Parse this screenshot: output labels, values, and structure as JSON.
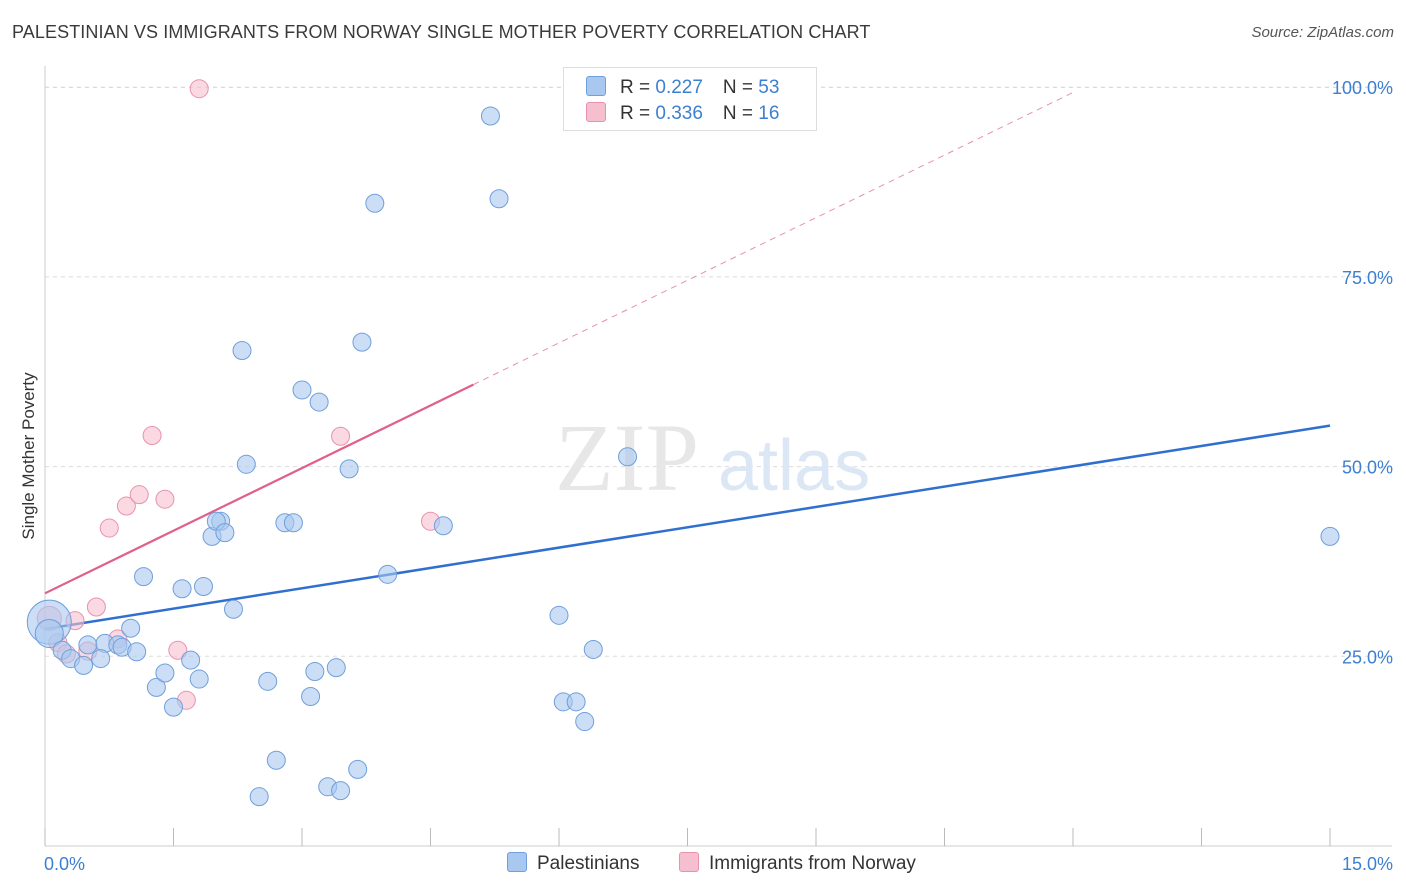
{
  "title": "PALESTINIAN VS IMMIGRANTS FROM NORWAY SINGLE MOTHER POVERTY CORRELATION CHART",
  "source": "Source: ZipAtlas.com",
  "watermark": {
    "zip": "ZIP",
    "atlas": "atlas"
  },
  "colors": {
    "blue_fill": "#a9c8ef",
    "blue_stroke": "#6f9fdc",
    "blue_line": "#2f6fcf",
    "pink_fill": "#f6bfd0",
    "pink_stroke": "#e892ae",
    "pink_line": "#e0608a",
    "tick_label": "#3d7fd0",
    "grid": "#dcdcdc"
  },
  "legend": {
    "rows": [
      {
        "r_label": "R = ",
        "r_value": "0.227",
        "n_label": "N = ",
        "n_value": "53"
      },
      {
        "r_label": "R = ",
        "r_value": "0.336",
        "n_label": "N = ",
        "n_value": "16"
      }
    ]
  },
  "bottom_legend": {
    "palestinians": "Palestinians",
    "norway": "Immigrants from Norway"
  },
  "chart_data": {
    "type": "scatter",
    "title": "PALESTINIAN VS IMMIGRANTS FROM NORWAY SINGLE MOTHER POVERTY CORRELATION CHART",
    "xlabel": "",
    "ylabel": "Single Mother Poverty",
    "xlim": [
      0,
      15
    ],
    "ylim": [
      0,
      102
    ],
    "x_tick_labels": [
      {
        "value": 0,
        "label": "0.0%"
      },
      {
        "value": 15,
        "label": "15.0%"
      }
    ],
    "y_tick_labels": [
      {
        "value": 25,
        "label": "25.0%"
      },
      {
        "value": 50,
        "label": "50.0%"
      },
      {
        "value": 75,
        "label": "75.0%"
      },
      {
        "value": 100,
        "label": "100.0%"
      }
    ],
    "series": [
      {
        "name": "Palestinians",
        "color": "blue",
        "R": 0.227,
        "N": 53,
        "trend": {
          "x": [
            0,
            15
          ],
          "y": [
            28.6,
            55.4
          ],
          "dashed_extension": false
        },
        "points": [
          [
            0.05,
            29.5,
            22
          ],
          [
            0.05,
            28.0,
            14
          ],
          [
            0.2,
            25.8,
            9
          ],
          [
            0.3,
            24.7,
            9
          ],
          [
            0.5,
            26.5,
            9
          ],
          [
            0.45,
            23.8,
            9
          ],
          [
            0.7,
            26.7,
            9
          ],
          [
            0.85,
            26.5,
            9
          ],
          [
            0.9,
            26.2,
            9
          ],
          [
            1.0,
            28.7,
            9
          ],
          [
            0.65,
            24.7,
            9
          ],
          [
            1.07,
            25.6,
            9
          ],
          [
            1.15,
            35.5,
            9
          ],
          [
            1.3,
            20.9,
            9
          ],
          [
            1.4,
            22.8,
            9
          ],
          [
            1.5,
            18.3,
            9
          ],
          [
            1.6,
            33.9,
            9
          ],
          [
            1.7,
            24.5,
            9
          ],
          [
            1.8,
            22.0,
            9
          ],
          [
            1.85,
            34.2,
            9
          ],
          [
            1.95,
            40.8,
            9
          ],
          [
            2.05,
            42.8,
            9
          ],
          [
            2.0,
            42.8,
            9
          ],
          [
            2.1,
            41.3,
            9
          ],
          [
            2.2,
            31.2,
            9
          ],
          [
            2.3,
            65.3,
            9
          ],
          [
            2.35,
            50.3,
            9
          ],
          [
            2.5,
            6.5,
            9
          ],
          [
            2.6,
            21.7,
            9
          ],
          [
            2.7,
            11.3,
            9
          ],
          [
            2.8,
            42.6,
            9
          ],
          [
            2.9,
            42.6,
            9
          ],
          [
            3.0,
            60.1,
            9
          ],
          [
            3.1,
            19.7,
            9
          ],
          [
            3.2,
            58.5,
            9
          ],
          [
            3.15,
            23.0,
            9
          ],
          [
            3.3,
            7.8,
            9
          ],
          [
            3.4,
            23.5,
            9
          ],
          [
            3.45,
            7.3,
            9
          ],
          [
            3.55,
            49.7,
            9
          ],
          [
            3.65,
            10.1,
            9
          ],
          [
            3.7,
            66.4,
            9
          ],
          [
            3.85,
            84.7,
            9
          ],
          [
            4.0,
            35.8,
            9
          ],
          [
            4.65,
            42.2,
            9
          ],
          [
            5.2,
            96.2,
            9
          ],
          [
            5.3,
            85.3,
            9
          ],
          [
            6.0,
            30.4,
            9
          ],
          [
            6.05,
            19.0,
            9
          ],
          [
            6.2,
            19.0,
            9
          ],
          [
            6.3,
            16.4,
            9
          ],
          [
            6.4,
            25.9,
            9
          ],
          [
            6.8,
            51.3,
            9
          ],
          [
            15.0,
            40.8,
            9
          ]
        ]
      },
      {
        "name": "Immigrants from Norway",
        "color": "pink",
        "R": 0.336,
        "N": 16,
        "trend": {
          "x": [
            0,
            5.0
          ],
          "y": [
            33.3,
            60.8
          ],
          "dashed_extension": true,
          "dash_to_x": 12.0
        },
        "points": [
          [
            0.05,
            30.0,
            12
          ],
          [
            0.15,
            26.8,
            9
          ],
          [
            0.25,
            25.3,
            9
          ],
          [
            0.35,
            29.7,
            9
          ],
          [
            0.5,
            25.7,
            9
          ],
          [
            0.6,
            31.5,
            9
          ],
          [
            0.75,
            41.9,
            9
          ],
          [
            0.85,
            27.3,
            9
          ],
          [
            0.95,
            44.8,
            9
          ],
          [
            1.1,
            46.3,
            9
          ],
          [
            1.25,
            54.1,
            9
          ],
          [
            1.4,
            45.7,
            9
          ],
          [
            1.55,
            25.8,
            9
          ],
          [
            1.65,
            19.2,
            9
          ],
          [
            1.8,
            99.8,
            9
          ],
          [
            3.45,
            54.0,
            9
          ],
          [
            4.5,
            42.8,
            9
          ]
        ]
      }
    ]
  }
}
